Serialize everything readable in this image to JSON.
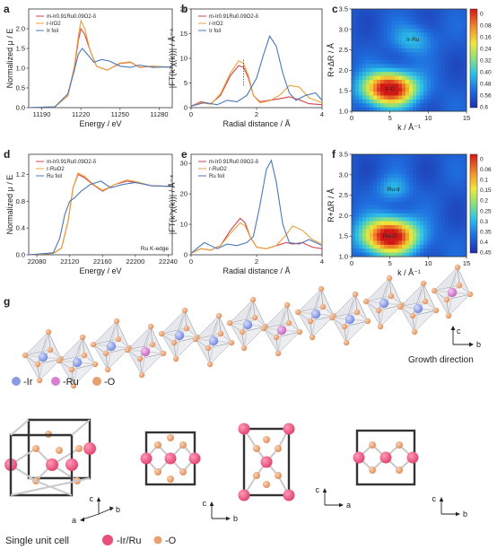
{
  "chart_data": [
    {
      "panel": "a",
      "type": "line",
      "xlabel": "Energy / eV",
      "ylabel": "Normalized μ / E",
      "xlim": [
        11180,
        11290
      ],
      "ylim": [
        0,
        2.5
      ],
      "xticks": [
        "11190",
        "11220",
        "11250",
        "11280"
      ],
      "yticks": [
        "0.0",
        "0.5",
        "1.0",
        "1.5",
        "2.0"
      ],
      "legend": [
        "m-Ir0.91Ru0.09O2-δ",
        "r-IrO2",
        "Ir foil"
      ],
      "series": [
        {
          "name": "m-Ir0.91Ru0.09O2-δ",
          "color": "#d6404a",
          "x": [
            11180,
            11200,
            11210,
            11215,
            11218,
            11220,
            11223,
            11227,
            11232,
            11240,
            11250,
            11258,
            11265,
            11275,
            11285,
            11290
          ],
          "y": [
            0,
            0.02,
            0.3,
            1.0,
            1.7,
            2.0,
            1.85,
            1.45,
            1.05,
            0.95,
            1.12,
            1.15,
            1.02,
            1.05,
            1.03,
            1.03
          ]
        },
        {
          "name": "r-IrO2",
          "color": "#e8a23a",
          "x": [
            11180,
            11200,
            11210,
            11215,
            11218,
            11220,
            11223,
            11227,
            11232,
            11240,
            11250,
            11258,
            11265,
            11275,
            11285,
            11290
          ],
          "y": [
            0,
            0.02,
            0.3,
            1.05,
            1.8,
            2.2,
            2.0,
            1.45,
            1.05,
            0.95,
            1.13,
            1.16,
            1.03,
            1.05,
            1.03,
            1.03
          ]
        },
        {
          "name": "Ir foil",
          "color": "#4a78b8",
          "x": [
            11180,
            11200,
            11210,
            11215,
            11218,
            11221,
            11225,
            11230,
            11236,
            11242,
            11250,
            11258,
            11265,
            11275,
            11285,
            11290
          ],
          "y": [
            0,
            0.02,
            0.35,
            0.95,
            1.35,
            1.5,
            1.35,
            1.15,
            1.22,
            1.18,
            1.05,
            1.02,
            1.08,
            1.02,
            1.03,
            1.03
          ]
        }
      ]
    },
    {
      "panel": "b",
      "type": "line",
      "xlabel": "Radial distance / Å",
      "ylabel": "|FT(k²χ(k))| / Å⁻⁴",
      "xlim": [
        0,
        4
      ],
      "ylim": [
        0,
        20
      ],
      "xticks": [
        "0",
        "2",
        "4"
      ],
      "yticks": [
        "0",
        "5",
        "10",
        "15",
        "20"
      ],
      "legend": [
        "m-Ir0.91Ru0.09O2-δ",
        "r-IrO2",
        "Ir foil"
      ],
      "series": [
        {
          "name": "m-Ir0.91Ru0.09O2-δ",
          "color": "#d6404a",
          "x": [
            0,
            0.3,
            0.6,
            0.9,
            1.2,
            1.45,
            1.6,
            1.75,
            1.9,
            2.1,
            2.4,
            2.7,
            3.0,
            3.3,
            3.6,
            4.0
          ],
          "y": [
            0.3,
            1.2,
            0.8,
            2.5,
            6.5,
            8.5,
            8.2,
            6.0,
            2.5,
            1.2,
            1.5,
            1.8,
            2.2,
            1.6,
            0.8,
            0.6
          ]
        },
        {
          "name": "r-IrO2",
          "color": "#e8a23a",
          "x": [
            0,
            0.3,
            0.6,
            0.9,
            1.2,
            1.45,
            1.6,
            1.75,
            1.9,
            2.1,
            2.4,
            2.7,
            3.0,
            3.3,
            3.6,
            4.0
          ],
          "y": [
            0.3,
            1.0,
            0.7,
            2.8,
            7.0,
            9.5,
            9.0,
            6.5,
            2.5,
            1.0,
            1.4,
            2.5,
            4.5,
            4.2,
            2.0,
            1.0
          ]
        },
        {
          "name": "Ir foil",
          "color": "#4a78b8",
          "x": [
            0,
            0.4,
            0.8,
            1.1,
            1.4,
            1.7,
            2.0,
            2.2,
            2.4,
            2.6,
            2.8,
            3.0,
            3.2,
            3.5,
            3.8,
            4.0
          ],
          "y": [
            0.3,
            1.0,
            0.6,
            1.5,
            1.2,
            2.5,
            6.0,
            10.5,
            14.5,
            12.5,
            7.0,
            3.0,
            1.5,
            2.5,
            3.0,
            1.5
          ]
        }
      ]
    },
    {
      "panel": "c",
      "type": "heatmap",
      "xlabel": "k / Å⁻¹",
      "ylabel": "R+ΔR / Å",
      "xlim": [
        0,
        15
      ],
      "ylim": [
        1.0,
        3.5
      ],
      "xticks": [
        "0",
        "5",
        "10",
        "15"
      ],
      "yticks": [
        "1.0",
        "1.5",
        "2.0",
        "2.5",
        "3.0",
        "3.5"
      ],
      "colorbar": [
        "0",
        "0.08",
        "0.16",
        "0.24",
        "0.32",
        "0.40",
        "0.48",
        "0.56",
        "0.6"
      ],
      "annotations": [
        "Ir-O",
        "Ir-Ru"
      ],
      "blobs": [
        {
          "x": 5.0,
          "y": 1.55,
          "sx": 2.4,
          "sy": 0.28,
          "v": 1.0
        },
        {
          "x": 8.0,
          "y": 2.75,
          "sx": 1.8,
          "sy": 0.25,
          "v": 0.22
        }
      ]
    },
    {
      "panel": "d",
      "type": "line",
      "xlabel": "Energy / eV",
      "ylabel": "Normalized μ / E",
      "xlim": [
        22070,
        22245
      ],
      "ylim": [
        0,
        1.5
      ],
      "xticks": [
        "22080",
        "22120",
        "22160",
        "22200",
        "22240"
      ],
      "yticks": [
        "0.0",
        "0.4",
        "0.8",
        "1.2"
      ],
      "legend": [
        "m-Ir0.91Ru0.09O2-δ",
        "r-RuO2",
        "Ru foil"
      ],
      "annotations": [
        "Ru K-edge"
      ],
      "series": [
        {
          "name": "m-Ir0.91Ru0.09O2-δ",
          "color": "#d6404a",
          "x": [
            22070,
            22100,
            22110,
            22118,
            22124,
            22130,
            22138,
            22148,
            22160,
            22175,
            22190,
            22205,
            22220,
            22245
          ],
          "y": [
            0,
            0.02,
            0.1,
            0.5,
            1.0,
            1.2,
            1.15,
            1.05,
            0.95,
            1.05,
            1.1,
            1.07,
            1.03,
            1.02
          ]
        },
        {
          "name": "r-RuO2",
          "color": "#e8a23a",
          "x": [
            22070,
            22100,
            22110,
            22118,
            22124,
            22130,
            22138,
            22148,
            22160,
            22175,
            22190,
            22205,
            22220,
            22245
          ],
          "y": [
            0,
            0.02,
            0.1,
            0.5,
            1.0,
            1.22,
            1.17,
            1.06,
            0.96,
            1.05,
            1.12,
            1.08,
            1.03,
            1.02
          ]
        },
        {
          "name": "Ru foil",
          "color": "#4a78b8",
          "x": [
            22070,
            22100,
            22108,
            22114,
            22120,
            22126,
            22134,
            22145,
            22158,
            22170,
            22185,
            22200,
            22220,
            22245
          ],
          "y": [
            0,
            0.03,
            0.25,
            0.6,
            0.8,
            0.85,
            0.95,
            1.05,
            1.1,
            1.0,
            1.05,
            1.08,
            1.03,
            1.02
          ]
        }
      ]
    },
    {
      "panel": "e",
      "type": "line",
      "xlabel": "Radial distance / Å",
      "ylabel": "|FT(k²χ(k))| / Å⁻⁴",
      "xlim": [
        0,
        4
      ],
      "ylim": [
        0,
        33
      ],
      "xticks": [
        "0",
        "2",
        "4"
      ],
      "yticks": [
        "0",
        "10",
        "20",
        "30"
      ],
      "legend": [
        "m-Ir0.91Ru0.09O2-δ",
        "r-RuO2",
        "Ru foil"
      ],
      "series": [
        {
          "name": "m-Ir0.91Ru0.09O2-δ",
          "color": "#d6404a",
          "x": [
            0,
            0.3,
            0.6,
            0.9,
            1.2,
            1.5,
            1.65,
            1.8,
            2.0,
            2.3,
            2.6,
            2.9,
            3.1,
            3.4,
            3.7,
            4.0
          ],
          "y": [
            0.5,
            2.0,
            1.5,
            3.0,
            8.0,
            12.0,
            10.5,
            6.0,
            2.5,
            2.0,
            3.0,
            4.0,
            3.5,
            4.0,
            2.5,
            2.0
          ]
        },
        {
          "name": "r-RuO2",
          "color": "#e8a23a",
          "x": [
            0,
            0.3,
            0.6,
            0.9,
            1.2,
            1.5,
            1.65,
            1.8,
            2.0,
            2.3,
            2.6,
            2.9,
            3.1,
            3.4,
            3.7,
            4.0
          ],
          "y": [
            0.5,
            2.0,
            1.5,
            3.0,
            7.0,
            10.5,
            9.5,
            6.0,
            2.5,
            2.0,
            3.0,
            6.5,
            9.5,
            8.0,
            5.0,
            3.5
          ]
        },
        {
          "name": "Ru foil",
          "color": "#4a78b8",
          "x": [
            0,
            0.4,
            0.8,
            1.1,
            1.4,
            1.7,
            1.9,
            2.1,
            2.3,
            2.45,
            2.6,
            2.8,
            3.0,
            3.3,
            3.6,
            4.0
          ],
          "y": [
            0.5,
            4.0,
            2.0,
            3.5,
            3.0,
            4.0,
            6.0,
            16.0,
            28.0,
            31.0,
            24.0,
            10.0,
            4.0,
            3.5,
            5.0,
            3.0
          ]
        }
      ]
    },
    {
      "panel": "f",
      "type": "heatmap",
      "xlabel": "k / Å⁻¹",
      "ylabel": "R+ΔR / Å",
      "xlim": [
        0,
        15
      ],
      "ylim": [
        1.0,
        3.5
      ],
      "xticks": [
        "0",
        "5",
        "10",
        "15"
      ],
      "yticks": [
        "1.0",
        "1.5",
        "2.0",
        "2.5",
        "3.0",
        "3.5"
      ],
      "colorbar": [
        "0",
        "0.06",
        "0.1",
        "0.15",
        "0.2",
        "0.25",
        "0.3",
        "0.35",
        "0.4",
        "0.45"
      ],
      "annotations": [
        "Ru-O",
        "Ru-Ir"
      ],
      "blobs": [
        {
          "x": 5.0,
          "y": 1.5,
          "sx": 2.5,
          "sy": 0.3,
          "v": 1.0
        },
        {
          "x": 5.5,
          "y": 2.65,
          "sx": 1.5,
          "sy": 0.22,
          "v": 0.2
        }
      ]
    }
  ],
  "structure": {
    "panel": "g",
    "legend_atoms": [
      {
        "label": "-Ir",
        "color": "#8b9be0"
      },
      {
        "label": "-Ru",
        "color": "#d77fd0"
      },
      {
        "label": "-O",
        "color": "#e8a070"
      }
    ],
    "growth_label": "Growth direction",
    "axes_top": [
      "c",
      "b"
    ],
    "unit_cell_label": "Single unit cell",
    "legend_bottom": [
      {
        "label": "-Ir/Ru",
        "color": "#e84f7c"
      },
      {
        "label": "-O",
        "color": "#e8a070"
      }
    ],
    "cell_axes": [
      [
        "c",
        "a",
        "b"
      ],
      [
        "c",
        "b"
      ],
      [
        "c",
        "a"
      ],
      [
        "c",
        "b"
      ]
    ]
  }
}
